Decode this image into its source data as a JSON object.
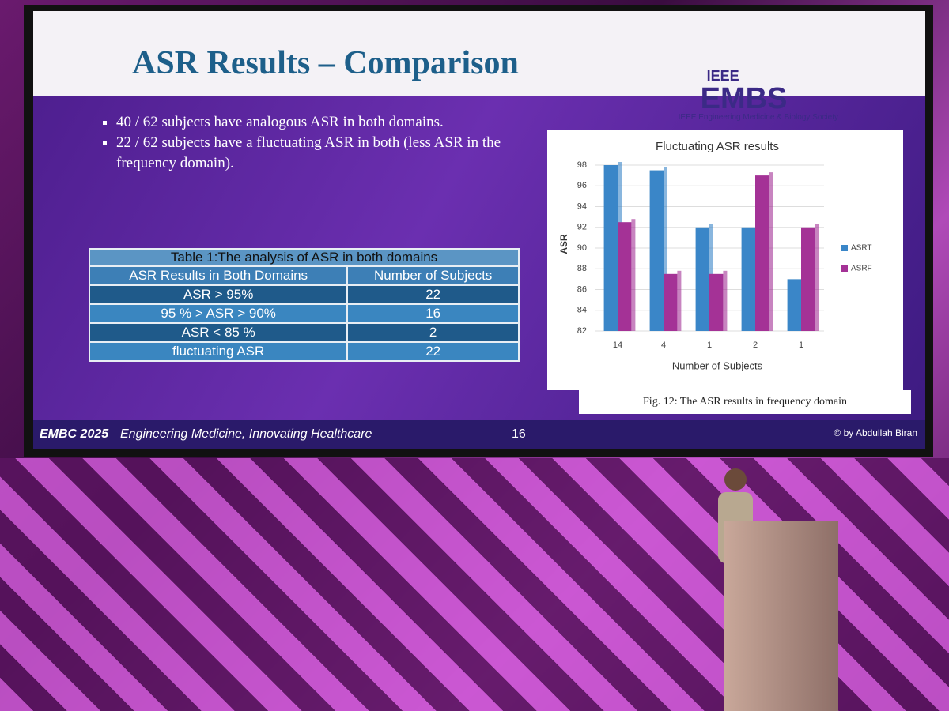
{
  "slide": {
    "title": "ASR Results – Comparison",
    "logo": {
      "top": "IEEE",
      "name": "EMBS",
      "subtitle": "IEEE Engineering Medicine & Biology Society"
    },
    "bullets": [
      "40 / 62 subjects have analogous ASR in both domains.",
      "22 / 62 subjects have a fluctuating ASR in both (less ASR in the frequency domain)."
    ],
    "table": {
      "caption": "Table 1:The analysis of ASR in both domains",
      "header": [
        "ASR Results in Both Domains",
        "Number of Subjects"
      ],
      "rows": [
        [
          "ASR > 95%",
          "22"
        ],
        [
          "95 % > ASR > 90%",
          "16"
        ],
        [
          "ASR < 85 %",
          "2"
        ],
        [
          "fluctuating ASR",
          "22"
        ]
      ]
    },
    "chart": {
      "type": "bar",
      "title": "Fluctuating ASR results",
      "y_label": "ASR",
      "x_label": "Number of Subjects",
      "categories": [
        "14",
        "4",
        "1",
        "2",
        "1"
      ],
      "series": [
        {
          "name": "ASRT",
          "color": "#3a86c8",
          "values": [
            98,
            97.5,
            92,
            92,
            87
          ]
        },
        {
          "name": "ASRF",
          "color": "#a43296",
          "values": [
            92.5,
            87.5,
            87.5,
            97,
            92
          ]
        }
      ],
      "ylim": [
        82,
        98
      ],
      "yticks": [
        82,
        84,
        86,
        88,
        90,
        92,
        94,
        96,
        98
      ],
      "grid": true,
      "legend": "right"
    },
    "caption": "Fig. 12: The ASR results in frequency domain",
    "footer": {
      "event": "EMBC 2025",
      "tagline": "Engineering Medicine, Innovating Healthcare",
      "page": "16",
      "credit": "© by Abdullah Biran"
    }
  }
}
